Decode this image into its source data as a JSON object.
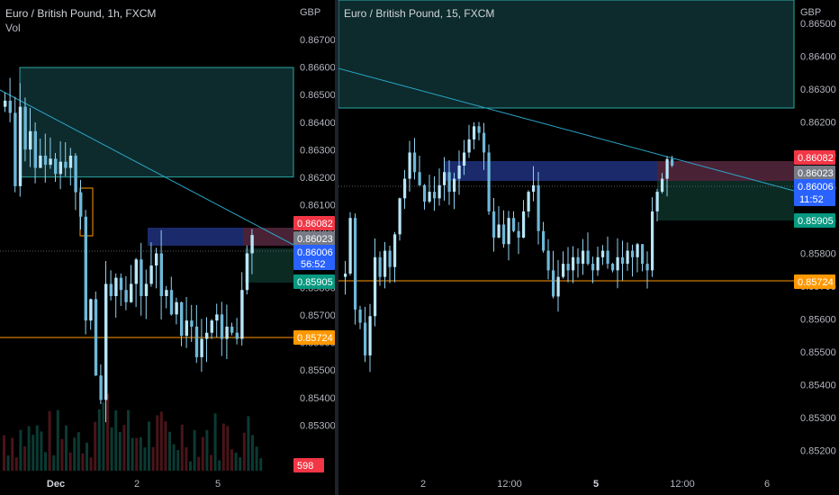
{
  "left_chart": {
    "title": "Euro / British Pound, 1h, FXCM",
    "subtitle": "Vol",
    "currency": "GBP",
    "y_ticks": [
      "0.86700",
      "0.86600",
      "0.86500",
      "0.86400",
      "0.86300",
      "0.86200",
      "0.86100",
      "0.86000",
      "0.85900",
      "0.85800",
      "0.85700",
      "0.85600",
      "0.85500",
      "0.85400",
      "0.85300"
    ],
    "x_ticks": [
      {
        "label": "Dec",
        "bold": true
      },
      {
        "label": "2",
        "bold": false
      },
      {
        "label": "5",
        "bold": false
      }
    ],
    "price_tags": [
      {
        "label": "0.86082",
        "color": "#f23645"
      },
      {
        "label": "0.86023",
        "color": "#787b86"
      },
      {
        "label": "0.86006",
        "sub": "56:52",
        "color": "#2962ff"
      },
      {
        "label": "0.85905",
        "color": "#089981"
      },
      {
        "label": "0.85724",
        "color": "#ff9800"
      },
      {
        "label": "598",
        "color": "#f23645"
      }
    ]
  },
  "right_chart": {
    "title": "Euro / British Pound, 15, FXCM",
    "currency": "GBP",
    "y_ticks": [
      "0.86500",
      "0.86400",
      "0.86300",
      "0.86200",
      "0.86100",
      "0.86000",
      "0.85900",
      "0.85800",
      "0.85700",
      "0.85600",
      "0.85500",
      "0.85400",
      "0.85300",
      "0.85200"
    ],
    "x_ticks": [
      {
        "label": "2",
        "bold": false
      },
      {
        "label": "12:00",
        "bold": false
      },
      {
        "label": "5",
        "bold": true
      },
      {
        "label": "12:00",
        "bold": false
      },
      {
        "label": "6",
        "bold": false
      }
    ],
    "price_tags": [
      {
        "label": "0.86082",
        "color": "#f23645"
      },
      {
        "label": "0.86023",
        "color": "#787b86"
      },
      {
        "label": "0.86006",
        "sub": "11:52",
        "color": "#2962ff"
      },
      {
        "label": "0.85905",
        "color": "#089981"
      },
      {
        "label": "0.85724",
        "color": "#ff9800"
      }
    ]
  },
  "colors": {
    "bull": "#92d2f0",
    "bear": "#92d2f0",
    "zone_teal": "#0d2b2c",
    "zone_blue": "#1b2a6b",
    "zone_pink": "#4a2236",
    "trendline": "#2aa7c9",
    "support": "#ff9800"
  }
}
